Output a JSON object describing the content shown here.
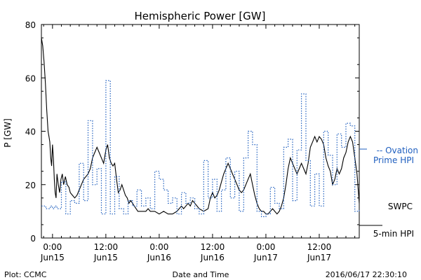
{
  "chart_data": {
    "type": "line",
    "title": "Hemispheric Power [GW]",
    "xlabel": "Date and Time",
    "ylabel": "P [GW]",
    "ylim": [
      0,
      80
    ],
    "xlim_hours": [
      -2.5,
      69
    ],
    "yticks": [
      0,
      20,
      40,
      60,
      80
    ],
    "xticks": [
      {
        "t": 0,
        "line1": "0:00",
        "line2": "Jun15"
      },
      {
        "t": 12,
        "line1": "12:00",
        "line2": "Jun15"
      },
      {
        "t": 24,
        "line1": "0:00",
        "line2": "Jun16"
      },
      {
        "t": 36,
        "line1": "12:00",
        "line2": "Jun16"
      },
      {
        "t": 48,
        "line1": "0:00",
        "line2": "Jun17"
      },
      {
        "t": 60,
        "line1": "12:00",
        "line2": "Jun17"
      }
    ],
    "grid": false,
    "series": [
      {
        "name": "SWPC 5-min HPI",
        "color": "#000000",
        "style": "solid",
        "points": [
          [
            -2.5,
            75
          ],
          [
            -2.2,
            72
          ],
          [
            -1.9,
            66
          ],
          [
            -1.6,
            58
          ],
          [
            -1.3,
            48
          ],
          [
            -1.0,
            40
          ],
          [
            -0.8,
            38
          ],
          [
            -0.6,
            36
          ],
          [
            -0.4,
            30
          ],
          [
            -0.2,
            27
          ],
          [
            0.0,
            35
          ],
          [
            0.2,
            30
          ],
          [
            0.4,
            22
          ],
          [
            0.6,
            17
          ],
          [
            0.8,
            15
          ],
          [
            1.0,
            24
          ],
          [
            1.3,
            20
          ],
          [
            1.6,
            17
          ],
          [
            1.9,
            22
          ],
          [
            2.2,
            24
          ],
          [
            2.5,
            20
          ],
          [
            2.9,
            23
          ],
          [
            3.3,
            20
          ],
          [
            3.7,
            19
          ],
          [
            4.0,
            17
          ],
          [
            4.5,
            16
          ],
          [
            5.0,
            15
          ],
          [
            5.5,
            16
          ],
          [
            6.0,
            18
          ],
          [
            6.5,
            20
          ],
          [
            7.0,
            22
          ],
          [
            7.5,
            23
          ],
          [
            8.0,
            24
          ],
          [
            8.5,
            26
          ],
          [
            9.0,
            30
          ],
          [
            9.5,
            32
          ],
          [
            10.0,
            34
          ],
          [
            10.5,
            32
          ],
          [
            11.0,
            30
          ],
          [
            11.5,
            28
          ],
          [
            12.0,
            33
          ],
          [
            12.4,
            35
          ],
          [
            12.8,
            30
          ],
          [
            13.2,
            28
          ],
          [
            13.6,
            27
          ],
          [
            14.0,
            28
          ],
          [
            14.4,
            22
          ],
          [
            14.8,
            17
          ],
          [
            15.2,
            18
          ],
          [
            15.6,
            20
          ],
          [
            16.0,
            18
          ],
          [
            16.4,
            16
          ],
          [
            16.8,
            15
          ],
          [
            17.2,
            13
          ],
          [
            17.6,
            14
          ],
          [
            18.0,
            13
          ],
          [
            18.4,
            12
          ],
          [
            18.8,
            11
          ],
          [
            19.2,
            10
          ],
          [
            20.0,
            10
          ],
          [
            21.0,
            10
          ],
          [
            21.5,
            11
          ],
          [
            22.0,
            10
          ],
          [
            23.0,
            10
          ],
          [
            24.0,
            9
          ],
          [
            25.0,
            10
          ],
          [
            26.0,
            9
          ],
          [
            27.0,
            9
          ],
          [
            28.0,
            10
          ],
          [
            28.5,
            11
          ],
          [
            29.0,
            12
          ],
          [
            29.5,
            11
          ],
          [
            30.0,
            12
          ],
          [
            30.5,
            13
          ],
          [
            31.0,
            12
          ],
          [
            31.5,
            14
          ],
          [
            32.0,
            13
          ],
          [
            33.0,
            11
          ],
          [
            34.0,
            10
          ],
          [
            35.0,
            11
          ],
          [
            35.5,
            15
          ],
          [
            36.0,
            17
          ],
          [
            36.5,
            15
          ],
          [
            37.0,
            16
          ],
          [
            37.5,
            18
          ],
          [
            38.0,
            21
          ],
          [
            38.5,
            24
          ],
          [
            39.0,
            26
          ],
          [
            39.5,
            28
          ],
          [
            40.0,
            26
          ],
          [
            40.5,
            24
          ],
          [
            41.0,
            22
          ],
          [
            41.5,
            20
          ],
          [
            42.0,
            18
          ],
          [
            42.5,
            17
          ],
          [
            43.0,
            18
          ],
          [
            43.5,
            20
          ],
          [
            44.0,
            22
          ],
          [
            44.5,
            24
          ],
          [
            45.0,
            20
          ],
          [
            45.5,
            16
          ],
          [
            46.0,
            13
          ],
          [
            46.5,
            11
          ],
          [
            47.0,
            10
          ],
          [
            47.5,
            10
          ],
          [
            48.0,
            9
          ],
          [
            48.5,
            9
          ],
          [
            49.0,
            10
          ],
          [
            49.5,
            11
          ],
          [
            50.0,
            10
          ],
          [
            50.5,
            9
          ],
          [
            51.0,
            10
          ],
          [
            51.5,
            12
          ],
          [
            52.0,
            15
          ],
          [
            52.5,
            20
          ],
          [
            53.0,
            26
          ],
          [
            53.5,
            30
          ],
          [
            54.0,
            28
          ],
          [
            54.5,
            26
          ],
          [
            55.0,
            24
          ],
          [
            55.5,
            26
          ],
          [
            56.0,
            28
          ],
          [
            56.5,
            26
          ],
          [
            57.0,
            24
          ],
          [
            57.5,
            28
          ],
          [
            58.0,
            34
          ],
          [
            58.5,
            36
          ],
          [
            59.0,
            38
          ],
          [
            59.5,
            36
          ],
          [
            60.0,
            38
          ],
          [
            60.5,
            37
          ],
          [
            61.0,
            35
          ],
          [
            61.5,
            30
          ],
          [
            62.0,
            27
          ],
          [
            62.5,
            25
          ],
          [
            63.0,
            20
          ],
          [
            63.5,
            22
          ],
          [
            64.0,
            26
          ],
          [
            64.5,
            24
          ],
          [
            65.0,
            26
          ],
          [
            65.5,
            30
          ],
          [
            66.0,
            32
          ],
          [
            66.5,
            36
          ],
          [
            67.0,
            38
          ],
          [
            67.5,
            36
          ],
          [
            68.0,
            30
          ],
          [
            68.5,
            24
          ],
          [
            69.0,
            13
          ]
        ]
      },
      {
        "name": "Ovation Prime HPI",
        "color": "#1f5fbf",
        "style": "dotted",
        "points": [
          [
            -2.5,
            12
          ],
          [
            -1.5,
            11
          ],
          [
            -0.5,
            12
          ],
          [
            0.0,
            11
          ],
          [
            0.5,
            12
          ],
          [
            1.0,
            11
          ],
          [
            2.0,
            21
          ],
          [
            3.0,
            9
          ],
          [
            4.0,
            14
          ],
          [
            5.0,
            13
          ],
          [
            6.0,
            28
          ],
          [
            7.0,
            14
          ],
          [
            8.0,
            44
          ],
          [
            9.0,
            20
          ],
          [
            10.0,
            26
          ],
          [
            11.0,
            9
          ],
          [
            12.0,
            59
          ],
          [
            13.0,
            9
          ],
          [
            14.0,
            23
          ],
          [
            15.0,
            11
          ],
          [
            16.0,
            9
          ],
          [
            17.0,
            14
          ],
          [
            18.0,
            12
          ],
          [
            19.0,
            18
          ],
          [
            20.0,
            12
          ],
          [
            21.0,
            15
          ],
          [
            22.0,
            11
          ],
          [
            23.0,
            25
          ],
          [
            24.0,
            22
          ],
          [
            25.0,
            18
          ],
          [
            26.0,
            13
          ],
          [
            27.0,
            15
          ],
          [
            28.0,
            9
          ],
          [
            29.0,
            17
          ],
          [
            30.0,
            13
          ],
          [
            31.0,
            15
          ],
          [
            32.0,
            11
          ],
          [
            33.0,
            9
          ],
          [
            34.0,
            29
          ],
          [
            35.0,
            15
          ],
          [
            36.0,
            22
          ],
          [
            37.0,
            10
          ],
          [
            38.0,
            18
          ],
          [
            39.0,
            30
          ],
          [
            40.0,
            15
          ],
          [
            41.0,
            25
          ],
          [
            42.0,
            10
          ],
          [
            43.0,
            30
          ],
          [
            44.0,
            40
          ],
          [
            45.0,
            35
          ],
          [
            46.0,
            10
          ],
          [
            47.0,
            8
          ],
          [
            48.0,
            9
          ],
          [
            49.0,
            19
          ],
          [
            50.0,
            13
          ],
          [
            51.0,
            11
          ],
          [
            52.0,
            34
          ],
          [
            53.0,
            37
          ],
          [
            54.0,
            14
          ],
          [
            55.0,
            33
          ],
          [
            56.0,
            54
          ],
          [
            57.0,
            29
          ],
          [
            58.0,
            12
          ],
          [
            59.0,
            24
          ],
          [
            60.0,
            12
          ],
          [
            61.0,
            40
          ],
          [
            62.0,
            31
          ],
          [
            63.0,
            20
          ],
          [
            64.0,
            39
          ],
          [
            65.0,
            34
          ],
          [
            66.0,
            43
          ],
          [
            67.0,
            42
          ],
          [
            68.0,
            10
          ],
          [
            69.0,
            11
          ]
        ]
      }
    ],
    "legend": {
      "placement": "right",
      "ovation_lines": [
        "-- Ovation",
        "Prime HPI"
      ],
      "swpc_lines": [
        "SWPC",
        "5-min HPI"
      ]
    },
    "footer": {
      "left": "Plot: CCMC",
      "right": "2016/06/17 22:30:10"
    }
  }
}
